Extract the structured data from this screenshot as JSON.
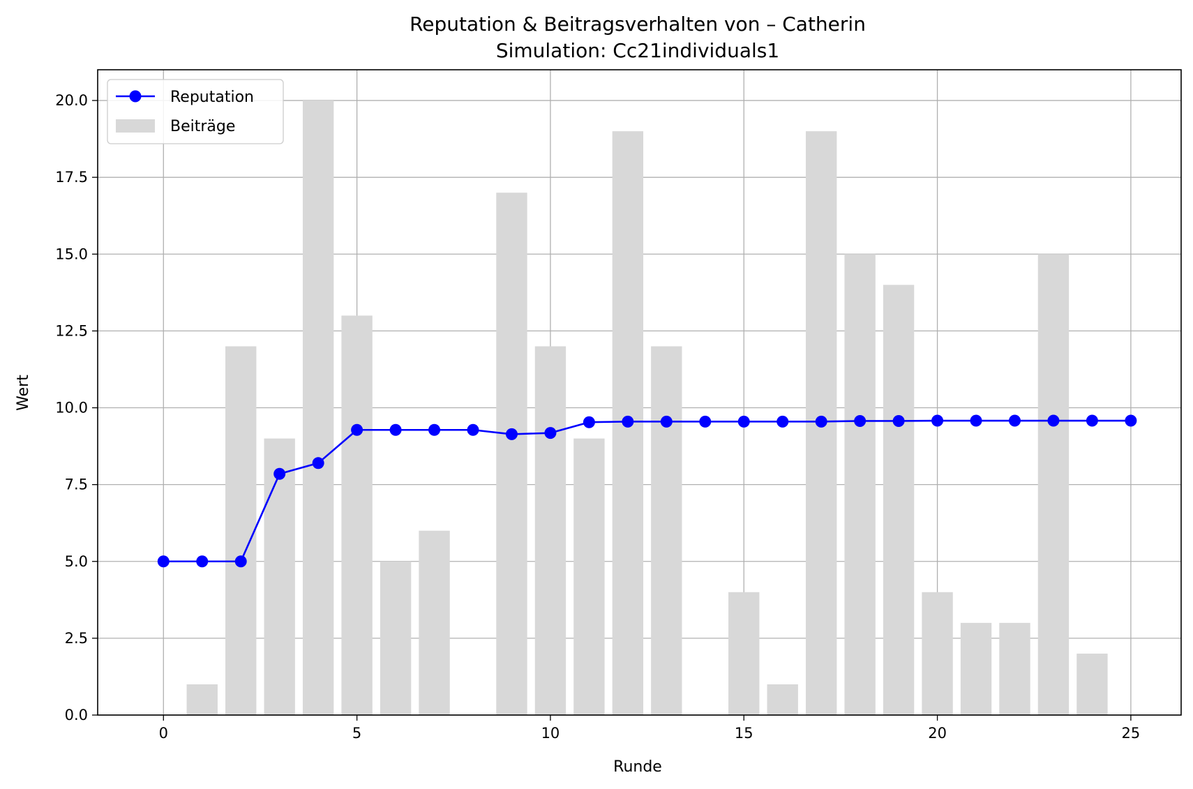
{
  "chart_data": {
    "type": "bar+line",
    "title": "Reputation & Beitragsverhalten von – Catherin",
    "subtitle": "Simulation: Cc21individuals1",
    "xlabel": "Runde",
    "ylabel": "Wert",
    "xlim": [
      -1.7,
      26.3
    ],
    "ylim": [
      0,
      21
    ],
    "xticks": [
      0,
      5,
      10,
      15,
      20,
      25
    ],
    "xtick_labels": [
      "0",
      "5",
      "10",
      "15",
      "20",
      "25"
    ],
    "yticks": [
      0,
      2.5,
      5,
      7.5,
      10,
      12.5,
      15,
      17.5,
      20
    ],
    "ytick_labels": [
      "0.0",
      "2.5",
      "5.0",
      "7.5",
      "10.0",
      "12.5",
      "15.0",
      "17.5",
      "20.0"
    ],
    "grid": true,
    "legend_position": "upper-left",
    "x": [
      0,
      1,
      2,
      3,
      4,
      5,
      6,
      7,
      8,
      9,
      10,
      11,
      12,
      13,
      14,
      15,
      16,
      17,
      18,
      19,
      20,
      21,
      22,
      23,
      24,
      25
    ],
    "series": [
      {
        "name": "Reputation",
        "type": "line",
        "color": "#0000ff",
        "marker": "circle",
        "values": [
          5.0,
          5.0,
          5.0,
          7.85,
          8.2,
          9.28,
          9.28,
          9.28,
          9.28,
          9.14,
          9.18,
          9.53,
          9.55,
          9.55,
          9.55,
          9.55,
          9.55,
          9.55,
          9.57,
          9.57,
          9.58,
          9.58,
          9.58,
          9.58,
          9.58,
          9.58
        ]
      },
      {
        "name": "Beiträge",
        "type": "bar",
        "color": "#d8d8d8",
        "values": [
          0,
          1,
          12,
          9,
          20,
          13,
          5,
          6,
          0,
          17,
          12,
          9,
          19,
          12,
          0,
          4,
          1,
          19,
          15,
          14,
          4,
          3,
          3,
          15,
          2,
          0
        ]
      }
    ]
  }
}
